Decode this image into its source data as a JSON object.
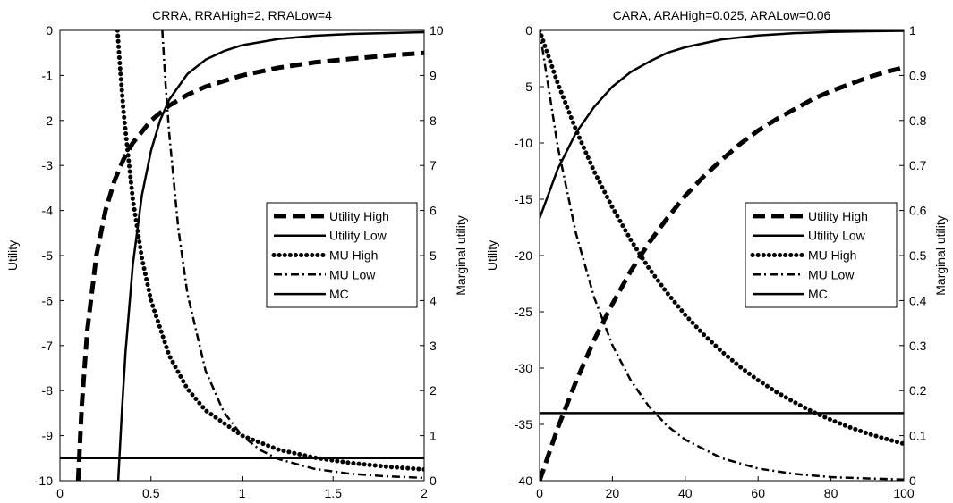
{
  "chart_data": [
    {
      "type": "line",
      "title": "CRRA, RRAHigh=2, RRALow=4",
      "ylabel": "Utility",
      "y2label": "Marginal utility",
      "xlim": [
        0,
        2
      ],
      "ylim": [
        -10,
        0
      ],
      "y2lim": [
        0,
        10
      ],
      "x_ticks": [
        "0",
        "0.5",
        "1",
        "1.5",
        "2"
      ],
      "y_ticks": [
        "0",
        "-1",
        "-2",
        "-3",
        "-4",
        "-5",
        "-6",
        "-7",
        "-8",
        "-9",
        "-10"
      ],
      "y2_ticks": [
        "10",
        "9",
        "8",
        "7",
        "6",
        "5",
        "4",
        "3",
        "2",
        "1",
        "0"
      ],
      "grid": false,
      "legend_placement": "center-right",
      "series": [
        {
          "name": "Utility High",
          "axis": "left",
          "style": "dashed-thick",
          "x": [
            0.1,
            0.12,
            0.15,
            0.2,
            0.25,
            0.3,
            0.35,
            0.4,
            0.5,
            0.6,
            0.7,
            0.8,
            1.0,
            1.2,
            1.4,
            1.6,
            1.8,
            2.0
          ],
          "y": [
            -10,
            -8.33,
            -6.67,
            -5.0,
            -4.0,
            -3.33,
            -2.86,
            -2.5,
            -2.0,
            -1.67,
            -1.43,
            -1.25,
            -1.0,
            -0.83,
            -0.71,
            -0.63,
            -0.56,
            -0.5
          ]
        },
        {
          "name": "Utility Low",
          "axis": "left",
          "style": "solid",
          "x": [
            0.32,
            0.34,
            0.36,
            0.4,
            0.45,
            0.5,
            0.55,
            0.6,
            0.7,
            0.8,
            0.9,
            1.0,
            1.2,
            1.4,
            1.6,
            1.8,
            2.0
          ],
          "y": [
            -10,
            -8.47,
            -7.14,
            -5.21,
            -3.66,
            -2.67,
            -2.0,
            -1.54,
            -0.97,
            -0.65,
            -0.46,
            -0.33,
            -0.19,
            -0.12,
            -0.08,
            -0.06,
            -0.04
          ]
        },
        {
          "name": "MU High",
          "axis": "right",
          "style": "dotted-thick",
          "x": [
            0.316,
            0.33,
            0.35,
            0.4,
            0.45,
            0.5,
            0.6,
            0.7,
            0.8,
            1.0,
            1.2,
            1.4,
            1.6,
            1.8,
            2.0
          ],
          "y": [
            10,
            9.18,
            8.16,
            6.25,
            4.94,
            4.0,
            2.78,
            2.04,
            1.56,
            1.0,
            0.69,
            0.51,
            0.39,
            0.31,
            0.25
          ]
        },
        {
          "name": "MU Low",
          "axis": "right",
          "style": "dashdot",
          "x": [
            0.562,
            0.58,
            0.6,
            0.65,
            0.7,
            0.8,
            0.9,
            1.0,
            1.1,
            1.2,
            1.4,
            1.6,
            1.8,
            2.0
          ],
          "y": [
            10,
            8.82,
            7.72,
            5.6,
            4.16,
            2.44,
            1.52,
            1.0,
            0.68,
            0.48,
            0.26,
            0.15,
            0.095,
            0.0625
          ]
        },
        {
          "name": "MC",
          "axis": "right",
          "style": "solid",
          "x": [
            0,
            2
          ],
          "y": [
            0.5,
            0.5
          ]
        }
      ]
    },
    {
      "type": "line",
      "title": "CARA, ARAHigh=0.025, ARALow=0.06",
      "ylabel": "Utility",
      "y2label": "Marginal utility",
      "xlim": [
        0,
        100
      ],
      "ylim": [
        -40,
        0
      ],
      "y2lim": [
        0,
        1
      ],
      "x_ticks": [
        "0",
        "20",
        "40",
        "60",
        "80",
        "100"
      ],
      "y_ticks": [
        "0",
        "-5",
        "-10",
        "-15",
        "-20",
        "-25",
        "-30",
        "-35",
        "-40"
      ],
      "y2_ticks": [
        "1",
        "0.9",
        "0.8",
        "0.7",
        "0.6",
        "0.5",
        "0.4",
        "0.3",
        "0.2",
        "0.1",
        "0"
      ],
      "grid": false,
      "legend_placement": "center-right",
      "series": [
        {
          "name": "Utility High",
          "axis": "left",
          "style": "dashed-thick",
          "x": [
            0,
            5,
            10,
            15,
            20,
            25,
            30,
            35,
            40,
            45,
            50,
            55,
            60,
            65,
            70,
            75,
            80,
            85,
            90,
            95,
            100
          ],
          "y": [
            -40,
            -35.3,
            -31.2,
            -27.5,
            -24.3,
            -21.4,
            -18.9,
            -16.7,
            -14.7,
            -13.0,
            -11.5,
            -10.1,
            -8.9,
            -7.9,
            -7.0,
            -6.1,
            -5.4,
            -4.8,
            -4.2,
            -3.7,
            -3.3
          ]
        },
        {
          "name": "Utility Low",
          "axis": "left",
          "style": "solid",
          "x": [
            0,
            5,
            10,
            15,
            20,
            25,
            30,
            35,
            40,
            50,
            60,
            70,
            80,
            90,
            100
          ],
          "y": [
            -16.7,
            -12.3,
            -9.1,
            -6.8,
            -5.0,
            -3.7,
            -2.8,
            -2.0,
            -1.5,
            -0.8,
            -0.46,
            -0.25,
            -0.14,
            -0.08,
            -0.04
          ]
        },
        {
          "name": "MU High",
          "axis": "right",
          "style": "dotted-thick",
          "x": [
            0,
            5,
            10,
            15,
            20,
            25,
            30,
            35,
            40,
            45,
            50,
            55,
            60,
            65,
            70,
            75,
            80,
            85,
            90,
            95,
            100
          ],
          "y": [
            1.0,
            0.882,
            0.779,
            0.687,
            0.607,
            0.535,
            0.472,
            0.417,
            0.368,
            0.325,
            0.287,
            0.253,
            0.223,
            0.197,
            0.174,
            0.153,
            0.135,
            0.119,
            0.105,
            0.093,
            0.082
          ]
        },
        {
          "name": "MU Low",
          "axis": "right",
          "style": "dashdot",
          "x": [
            0,
            5,
            10,
            15,
            20,
            25,
            30,
            35,
            40,
            50,
            60,
            70,
            80,
            90,
            100
          ],
          "y": [
            1.0,
            0.741,
            0.549,
            0.407,
            0.301,
            0.223,
            0.165,
            0.122,
            0.091,
            0.05,
            0.027,
            0.015,
            0.008,
            0.005,
            0.0025
          ]
        },
        {
          "name": "MC",
          "axis": "right",
          "style": "solid",
          "x": [
            0,
            100
          ],
          "y": [
            0.15,
            0.15
          ]
        }
      ]
    }
  ]
}
